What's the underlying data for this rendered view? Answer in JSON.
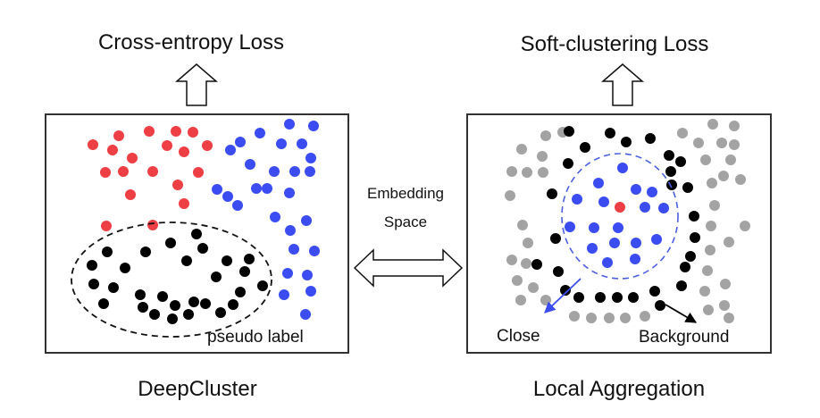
{
  "left_panel": {
    "loss_label": "Cross-entropy Loss",
    "caption": "DeepCluster",
    "annotation": "pseudo label",
    "colors": {
      "red": "#ee3f44",
      "blue": "#3b4cf2",
      "black": "#000000"
    }
  },
  "center": {
    "line1": "Embedding",
    "line2": "Space"
  },
  "right_panel": {
    "loss_label": "Soft-clustering Loss",
    "caption": "Local Aggregation",
    "close_label": "Close",
    "background_label": "Background",
    "colors": {
      "gray": "#a3a3a3",
      "blue": "#3b4cf2",
      "black": "#000000",
      "red": "#ee3f44",
      "dashed": "#4b5fe0"
    }
  }
}
